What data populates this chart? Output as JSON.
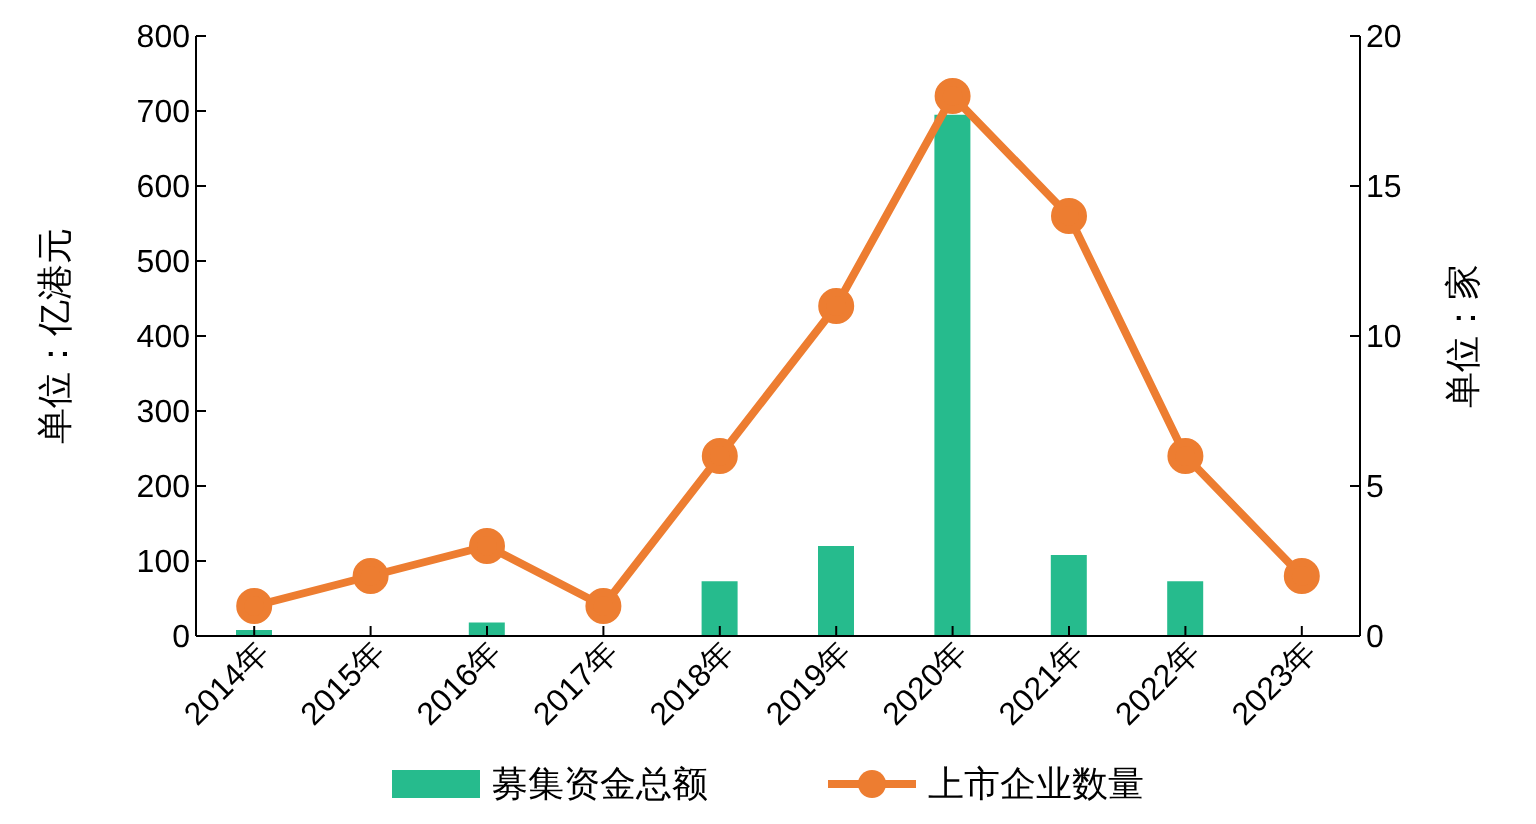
{
  "chart_data": {
    "type": "bar",
    "categories": [
      "2014年",
      "2015年",
      "2016年",
      "2017年",
      "2018年",
      "2019年",
      "2020年",
      "2021年",
      "2022年",
      "2023年"
    ],
    "series": [
      {
        "name": "募集资金总额",
        "color": "#26bb8d",
        "values": [
          8,
          0,
          18,
          0,
          73,
          120,
          695,
          108,
          73,
          0
        ]
      },
      {
        "name": "上市企业数量",
        "type": "line",
        "axis": "y2",
        "color": "#ed7d31",
        "marker": "circle",
        "values": [
          1,
          2,
          3,
          1,
          6,
          11,
          18,
          14,
          6,
          2
        ]
      }
    ],
    "ylabel": "单位：亿港元",
    "y2label": "单位：家",
    "ylim": [
      0,
      800
    ],
    "yticks": [
      0,
      100,
      200,
      300,
      400,
      500,
      600,
      700,
      800
    ],
    "y2lim": [
      0,
      20
    ],
    "y2ticks": [
      0,
      5,
      10,
      15,
      20
    ],
    "legend": "bottom",
    "grid": false
  }
}
